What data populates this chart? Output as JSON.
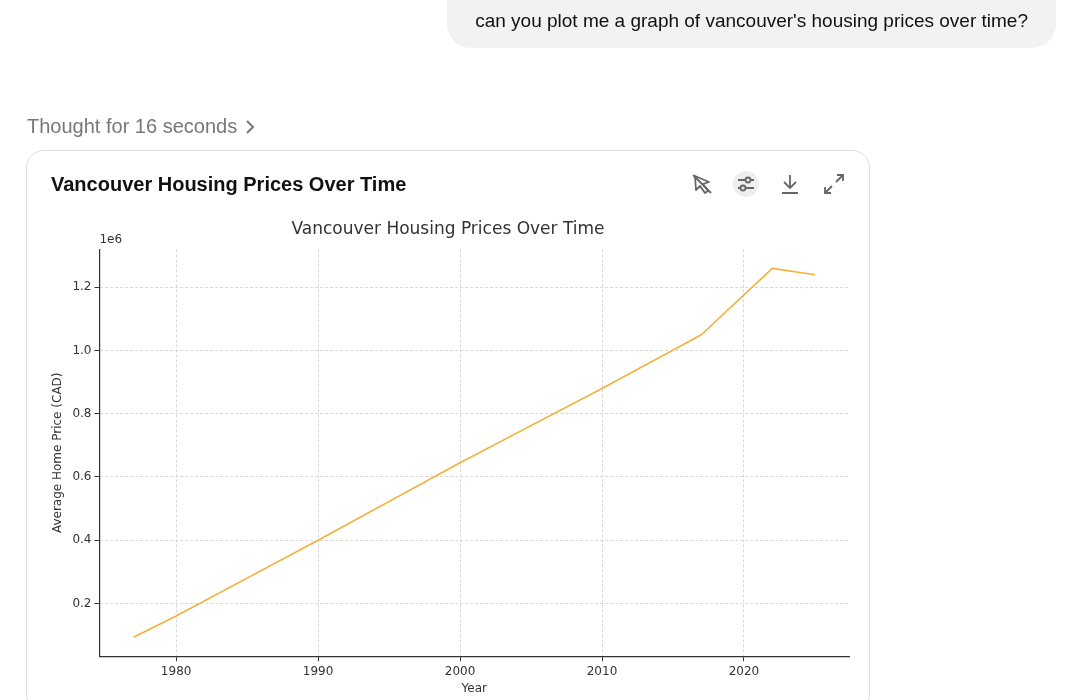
{
  "chart_data": {
    "type": "line",
    "title": "Vancouver Housing Prices Over Time",
    "subtitle": "Vancouver Housing Prices Over Time",
    "xlabel": "Year",
    "ylabel": "Average Home Price (CAD)",
    "annotations": [
      "can you plot me a graph of vancouver's housing prices over time?",
      "Thought for 16 seconds",
      "1e6"
    ],
    "x": [
      1977,
      1980,
      1990,
      2000,
      2010,
      2017,
      2022,
      2025
    ],
    "series": [
      {
        "color": "#f5b03c",
        "values": [
          0.093,
          0.16,
          0.4,
          0.645,
          0.88,
          1.05,
          1.26,
          1.24
        ]
      }
    ],
    "xlim": [
      1974.6,
      2027.4
    ],
    "xticks": [
      1980,
      1990,
      2000,
      2010,
      2020
    ],
    "ylim": [
      0.033,
      1.32
    ],
    "yticks": [
      0.2,
      0.4,
      0.6,
      0.8,
      {
        "value": 1.0,
        "label": "1.0"
      },
      1.2
    ],
    "grid": true,
    "line_style": "solid"
  }
}
